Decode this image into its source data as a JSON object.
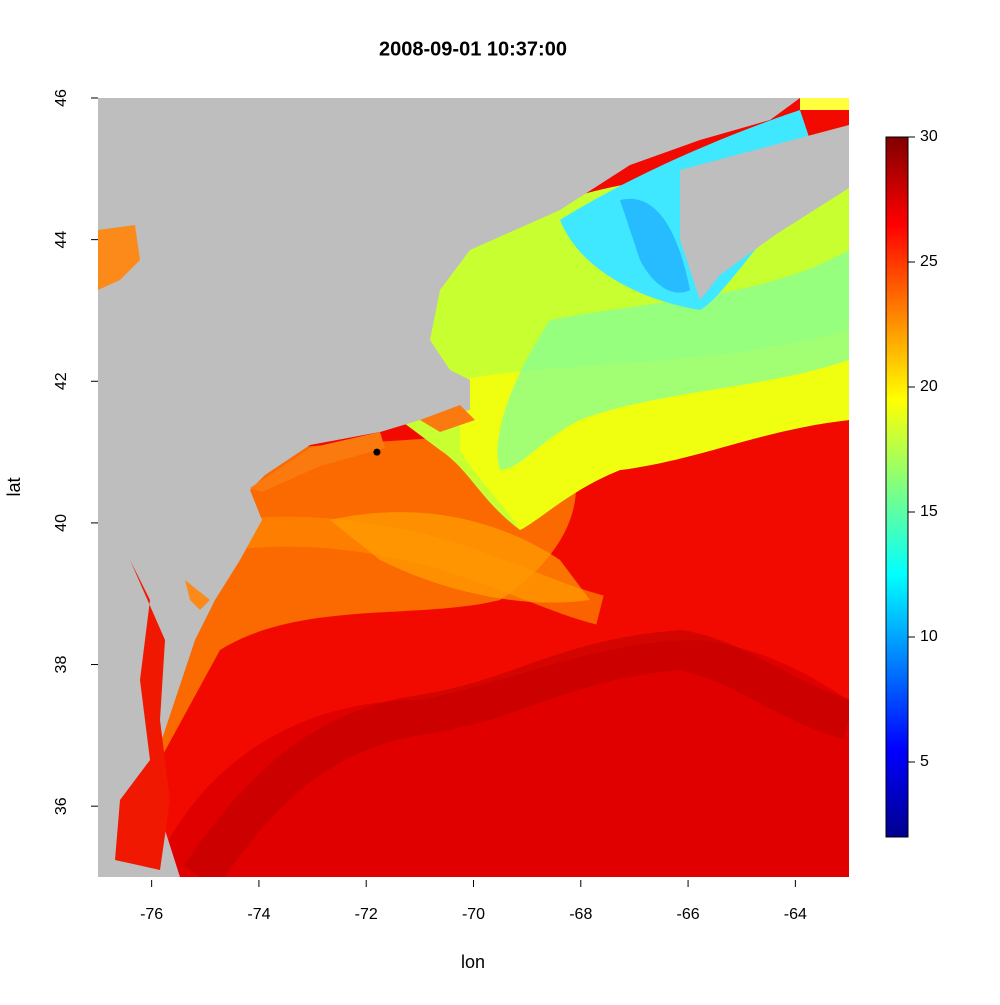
{
  "chart_data": {
    "type": "heatmap",
    "title": "2008-09-01 10:37:00",
    "x_label": "lon",
    "y_label": "lat",
    "xlim": [
      -77,
      -63
    ],
    "xticks": [
      -76,
      -74,
      -72,
      -70,
      -68,
      -66,
      -64
    ],
    "ylim": [
      35,
      46
    ],
    "yticks": [
      36,
      38,
      40,
      42,
      44,
      46
    ],
    "colorbar": {
      "lim": [
        2,
        30
      ],
      "ticks": [
        5,
        10,
        15,
        20,
        25,
        30
      ],
      "colors": [
        "#00008f",
        "#0000ff",
        "#0080ff",
        "#00ffff",
        "#80ff80",
        "#ffff00",
        "#ff8000",
        "#ff0000",
        "#800000"
      ]
    },
    "points": {
      "x": [
        -71.8
      ],
      "y": [
        41.0
      ],
      "color": "#000000"
    }
  }
}
